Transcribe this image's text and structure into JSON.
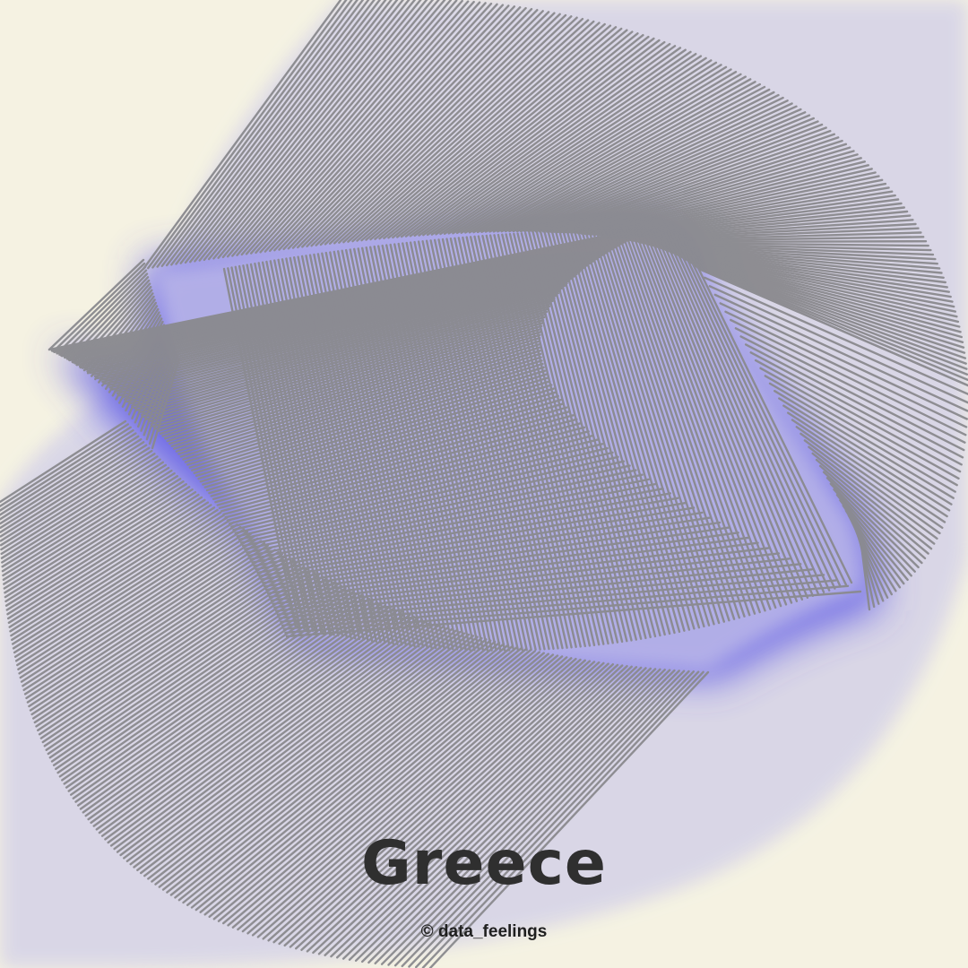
{
  "artwork": {
    "title": "Greece",
    "credit": "© data_feelings"
  },
  "colors": {
    "background": "#f5f2e2",
    "ribbon_wash": "#d7d4e6",
    "glow": "#4a45e6",
    "lines": "#8a8a8e",
    "text": "#2f2f2f"
  }
}
